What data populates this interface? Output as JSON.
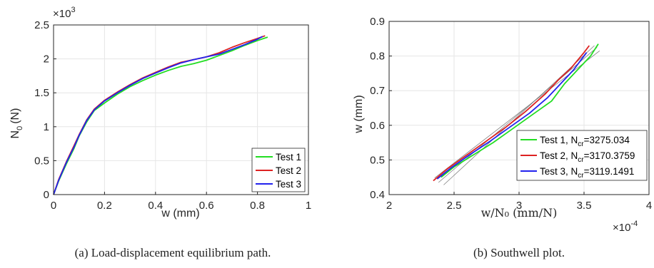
{
  "chart_data": [
    {
      "type": "line",
      "caption": "(a) Load-displacement equilibrium path.",
      "xlabel": "w (mm)",
      "ylabel": "N",
      "ylabel_sub": "0",
      "ylabel_unit": "(N)",
      "y_multiplier_base": "×10",
      "y_multiplier_exp": "3",
      "xlim": [
        0,
        1
      ],
      "ylim": [
        0,
        2.5
      ],
      "xticks": [
        "0",
        "0.2",
        "0.4",
        "0.6",
        "0.8",
        "1"
      ],
      "yticks": [
        "0",
        "0.5",
        "1",
        "1.5",
        "2",
        "2.5"
      ],
      "grid": true,
      "legend_position": "bottom-right",
      "series": [
        {
          "name": "Test 1",
          "color": "#22dd22",
          "x": [
            0,
            0.02,
            0.05,
            0.08,
            0.1,
            0.13,
            0.16,
            0.2,
            0.25,
            0.3,
            0.35,
            0.4,
            0.45,
            0.5,
            0.55,
            0.6,
            0.65,
            0.7,
            0.75,
            0.8,
            0.84
          ],
          "y": [
            0,
            0.2,
            0.45,
            0.68,
            0.86,
            1.07,
            1.24,
            1.35,
            1.48,
            1.59,
            1.68,
            1.76,
            1.83,
            1.89,
            1.93,
            1.98,
            2.05,
            2.12,
            2.2,
            2.27,
            2.32
          ]
        },
        {
          "name": "Test 2",
          "color": "#dd2222",
          "x": [
            0,
            0.02,
            0.05,
            0.08,
            0.1,
            0.13,
            0.16,
            0.2,
            0.25,
            0.3,
            0.35,
            0.4,
            0.45,
            0.5,
            0.55,
            0.6,
            0.65,
            0.7,
            0.75,
            0.8,
            0.83
          ],
          "y": [
            0,
            0.22,
            0.48,
            0.72,
            0.88,
            1.1,
            1.26,
            1.39,
            1.51,
            1.62,
            1.72,
            1.8,
            1.88,
            1.95,
            1.99,
            2.03,
            2.09,
            2.17,
            2.24,
            2.3,
            2.34
          ]
        },
        {
          "name": "Test 3",
          "color": "#2222ee",
          "x": [
            0,
            0.02,
            0.05,
            0.08,
            0.1,
            0.13,
            0.16,
            0.2,
            0.25,
            0.3,
            0.35,
            0.4,
            0.45,
            0.5,
            0.55,
            0.6,
            0.65,
            0.7,
            0.75,
            0.8,
            0.82
          ],
          "y": [
            0,
            0.21,
            0.47,
            0.7,
            0.87,
            1.09,
            1.25,
            1.38,
            1.5,
            1.61,
            1.71,
            1.79,
            1.87,
            1.94,
            1.99,
            2.03,
            2.07,
            2.14,
            2.21,
            2.29,
            2.33
          ]
        }
      ]
    },
    {
      "type": "line",
      "caption": "(b) Southwell plot.",
      "xlabel": "w/N₀ (mm/N)",
      "ylabel": "w (mm)",
      "x_multiplier_base": "×10",
      "x_multiplier_exp": "-4",
      "xlim": [
        2,
        4
      ],
      "ylim": [
        0.4,
        0.9
      ],
      "xticks": [
        "2",
        "2.5",
        "3",
        "3.5",
        "4"
      ],
      "yticks": [
        "0.4",
        "0.5",
        "0.6",
        "0.7",
        "0.8",
        "0.9"
      ],
      "grid": true,
      "legend_position": "right",
      "series": [
        {
          "name": "Test 1",
          "legend_sub": "cr",
          "legend_value": "=3275.034",
          "color": "#22dd22",
          "x": [
            2.4,
            2.5,
            2.65,
            2.8,
            2.95,
            3.1,
            3.25,
            3.35,
            3.45,
            3.55,
            3.61
          ],
          "y": [
            0.45,
            0.48,
            0.515,
            0.55,
            0.59,
            0.63,
            0.67,
            0.72,
            0.76,
            0.8,
            0.835
          ]
        },
        {
          "name": "Test 2",
          "legend_sub": "cr",
          "legend_value": "=3170.3759",
          "color": "#dd2222",
          "x": [
            2.34,
            2.45,
            2.6,
            2.75,
            2.9,
            3.05,
            3.2,
            3.3,
            3.4,
            3.5,
            3.54
          ],
          "y": [
            0.44,
            0.475,
            0.515,
            0.555,
            0.595,
            0.64,
            0.69,
            0.73,
            0.765,
            0.81,
            0.83
          ]
        },
        {
          "name": "Test 3",
          "legend_sub": "cr",
          "legend_value": "=3119.1491",
          "color": "#2222ee",
          "x": [
            2.37,
            2.48,
            2.62,
            2.78,
            2.93,
            3.08,
            3.22,
            3.32,
            3.42,
            3.52
          ],
          "y": [
            0.445,
            0.478,
            0.515,
            0.555,
            0.595,
            0.635,
            0.68,
            0.72,
            0.76,
            0.81
          ]
        }
      ],
      "fit_lines": [
        {
          "x": [
            2.35,
            3.62
          ],
          "y": [
            0.448,
            0.815
          ]
        },
        {
          "x": [
            2.38,
            3.6
          ],
          "y": [
            0.435,
            0.825
          ]
        },
        {
          "x": [
            2.42,
            3.58
          ],
          "y": [
            0.428,
            0.83
          ]
        }
      ]
    }
  ]
}
